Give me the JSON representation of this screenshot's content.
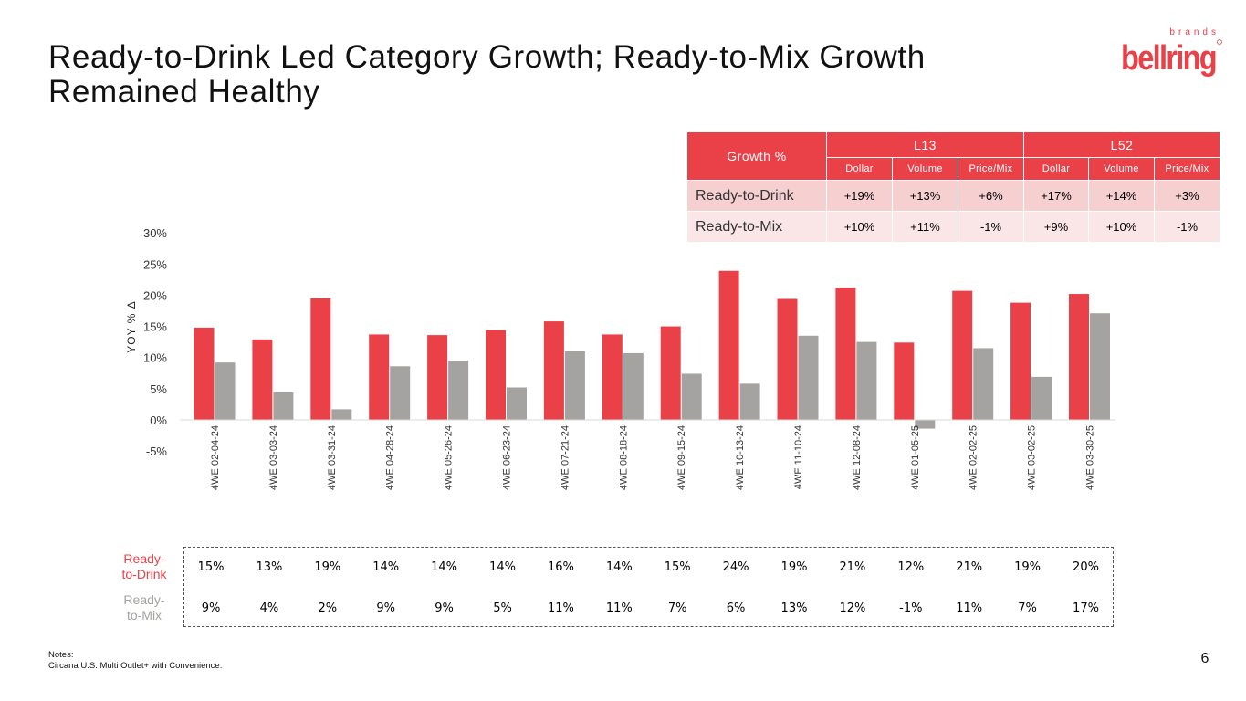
{
  "title": {
    "line1": "Ready-to-Drink Led Category Growth; Ready-to-Mix Growth",
    "line2": "Remained Healthy"
  },
  "logo": {
    "wordmark": "bellring",
    "subtext": "brands"
  },
  "colors": {
    "accent": "#ea4048",
    "gray": "#a5a3a0",
    "row1": "#f6cfd1",
    "row2": "#fbe6e7"
  },
  "growth_table": {
    "header_label": "Growth %",
    "group1": "L13",
    "group2": "L52",
    "subheaders": [
      "Dollar",
      "Volume",
      "Price/Mix",
      "Dollar",
      "Volume",
      "Price/Mix"
    ],
    "rows": [
      {
        "label": "Ready-to-Drink",
        "values": [
          "+19%",
          "+13%",
          "+6%",
          "+17%",
          "+14%",
          "+3%"
        ]
      },
      {
        "label": "Ready-to-Mix",
        "values": [
          "+10%",
          "+11%",
          "-1%",
          "+9%",
          "+10%",
          "-1%"
        ]
      }
    ]
  },
  "chart_data": {
    "type": "bar",
    "ylabel": "YOY % Δ",
    "ylim": [
      -5,
      30
    ],
    "yticks": [
      30,
      25,
      20,
      15,
      10,
      5,
      0,
      -5
    ],
    "ytick_labels": [
      "30%",
      "25%",
      "20%",
      "15%",
      "10%",
      "5%",
      "0%",
      "-5%"
    ],
    "grid": false,
    "categories": [
      "4WE 02-04-24",
      "4WE 03-03-24",
      "4WE 03-31-24",
      "4WE 04-28-24",
      "4WE 05-26-24",
      "4WE 06-23-24",
      "4WE 07-21-24",
      "4WE 08-18-24",
      "4WE 09-15-24",
      "4WE 10-13-24",
      "4WE 11-10-24",
      "4WE 12-08-24",
      "4WE 01-05-25",
      "4WE 02-02-25",
      "4WE 03-02-25",
      "4WE 03-30-25"
    ],
    "series": [
      {
        "name": "Ready-to-Drink",
        "color": "#ea4048",
        "values": [
          14.8,
          12.9,
          19.5,
          13.7,
          13.6,
          14.4,
          15.8,
          13.7,
          15.0,
          23.9,
          19.4,
          21.2,
          12.4,
          20.7,
          18.8,
          20.2
        ],
        "labels": [
          "15%",
          "13%",
          "19%",
          "14%",
          "14%",
          "14%",
          "16%",
          "14%",
          "15%",
          "24%",
          "19%",
          "21%",
          "12%",
          "21%",
          "19%",
          "20%"
        ]
      },
      {
        "name": "Ready-to-Mix",
        "color": "#a5a3a0",
        "values": [
          9.2,
          4.4,
          1.7,
          8.6,
          9.5,
          5.2,
          11.0,
          10.7,
          7.4,
          5.8,
          13.5,
          12.5,
          -1.4,
          11.5,
          6.9,
          17.1
        ],
        "labels": [
          "9%",
          "4%",
          "2%",
          "9%",
          "9%",
          "5%",
          "11%",
          "11%",
          "7%",
          "6%",
          "13%",
          "12%",
          "-1%",
          "11%",
          "7%",
          "17%"
        ]
      }
    ]
  },
  "legend": {
    "rtd": "Ready-to-Drink",
    "rtd_line1": "Ready-",
    "rtd_line2": "to-Drink",
    "rtm_line1": "Ready-",
    "rtm_line2": "to-Mix"
  },
  "notes": {
    "label": "Notes:",
    "text": "Circana U.S. Multi Outlet+ with Convenience."
  },
  "page_number": "6"
}
